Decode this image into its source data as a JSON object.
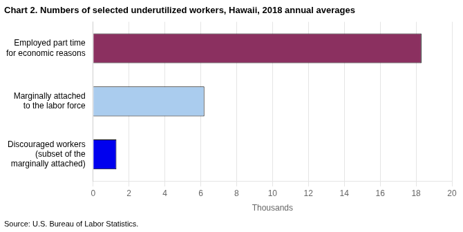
{
  "chart_data": {
    "type": "bar",
    "orientation": "horizontal",
    "title": "Chart 2. Numbers of selected underutilized workers, Hawaii, 2018 annual averages",
    "source": "Source: U.S. Bureau of Labor Statistics.",
    "categories": [
      "Discouraged workers\n(subset of the\nmarginally attached)",
      "Marginally attached\nto the labor force",
      "Employed part time\nfor economic reasons"
    ],
    "values": [
      1.3,
      6.2,
      18.3
    ],
    "colors": [
      "#0000ee",
      "#aaccee",
      "#8b3060"
    ],
    "xlabel": "Thousands",
    "xlim": [
      0,
      20
    ],
    "xticks": [
      0,
      2,
      4,
      6,
      8,
      10,
      12,
      14,
      16,
      18,
      20
    ],
    "grid": true
  }
}
